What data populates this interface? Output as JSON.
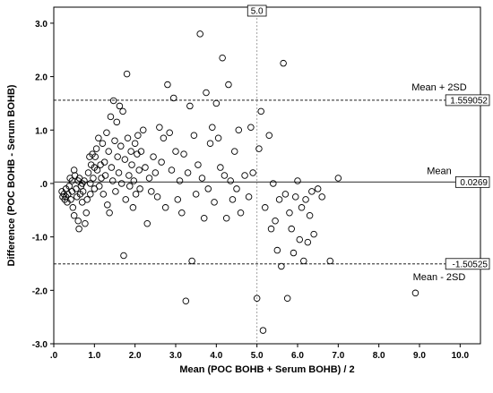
{
  "chart_data": {
    "type": "scatter",
    "xlabel": "Mean (POC BOHB + Serum BOHB) / 2",
    "ylabel": "Difference (POC BOHB - Serum BOHB)",
    "xlim": [
      0,
      10.5
    ],
    "ylim": [
      -3.0,
      3.3
    ],
    "x_ticks": [
      ".0",
      "1.0",
      "2.0",
      "3.0",
      "4.0",
      "5.0",
      "6.0",
      "7.0",
      "8.0",
      "9.0",
      "10.0"
    ],
    "x_tick_values": [
      0,
      1,
      2,
      3,
      4,
      5,
      6,
      7,
      8,
      9,
      10
    ],
    "y_ticks": [
      "3.0",
      "2.0",
      "1.0",
      ".0",
      "-1.0",
      "-2.0",
      "-3.0"
    ],
    "y_tick_values": [
      3,
      2,
      1,
      0,
      -1,
      -2,
      -3
    ],
    "grid": false,
    "reference_lines": [
      {
        "axis": "y",
        "value": 1.559052,
        "label": "Mean + 2SD",
        "box_label": "1.559052",
        "style": "dashed"
      },
      {
        "axis": "y",
        "value": 0.0269,
        "label": "Mean",
        "box_label": "0.0269",
        "style": "solid"
      },
      {
        "axis": "y",
        "value": -1.50525,
        "label": "Mean - 2SD",
        "box_label": "-1.50525",
        "style": "dashed"
      },
      {
        "axis": "x",
        "value": 5.0,
        "box_label": "5.0",
        "style": "dotted"
      }
    ],
    "points": [
      [
        0.2,
        -0.15
      ],
      [
        0.22,
        -0.25
      ],
      [
        0.25,
        -0.2
      ],
      [
        0.27,
        -0.3
      ],
      [
        0.3,
        -0.1
      ],
      [
        0.3,
        -0.25
      ],
      [
        0.33,
        -0.35
      ],
      [
        0.35,
        -0.2
      ],
      [
        0.38,
        -0.05
      ],
      [
        0.4,
        0.1
      ],
      [
        0.42,
        -0.3
      ],
      [
        0.45,
        0.05
      ],
      [
        0.45,
        -0.15
      ],
      [
        0.47,
        -0.45
      ],
      [
        0.5,
        -0.6
      ],
      [
        0.5,
        0.25
      ],
      [
        0.52,
        0.15
      ],
      [
        0.55,
        -0.1
      ],
      [
        0.57,
        -0.25
      ],
      [
        0.6,
        0.05
      ],
      [
        0.6,
        -0.7
      ],
      [
        0.62,
        -0.85
      ],
      [
        0.63,
        0.1
      ],
      [
        0.65,
        -0.2
      ],
      [
        0.67,
        -0.05
      ],
      [
        0.7,
        0.0
      ],
      [
        0.7,
        -0.35
      ],
      [
        0.72,
        -0.15
      ],
      [
        0.75,
        0.05
      ],
      [
        0.77,
        -0.75
      ],
      [
        0.8,
        -0.55
      ],
      [
        0.82,
        -0.3
      ],
      [
        0.85,
        0.2
      ],
      [
        0.88,
        0.5
      ],
      [
        0.9,
        0.0
      ],
      [
        0.9,
        -0.2
      ],
      [
        0.92,
        0.35
      ],
      [
        0.95,
        0.55
      ],
      [
        0.97,
        0.1
      ],
      [
        1.0,
        0.3
      ],
      [
        1.0,
        -0.1
      ],
      [
        1.02,
        0.5
      ],
      [
        1.05,
        0.65
      ],
      [
        1.07,
        0.25
      ],
      [
        1.1,
        0.85
      ],
      [
        1.12,
        -0.05
      ],
      [
        1.15,
        0.35
      ],
      [
        1.17,
        0.1
      ],
      [
        1.2,
        0.75
      ],
      [
        1.22,
        -0.2
      ],
      [
        1.25,
        0.4
      ],
      [
        1.27,
        0.15
      ],
      [
        1.3,
        0.95
      ],
      [
        1.32,
        -0.4
      ],
      [
        1.35,
        0.6
      ],
      [
        1.37,
        -0.55
      ],
      [
        1.4,
        1.25
      ],
      [
        1.42,
        0.3
      ],
      [
        1.45,
        0.05
      ],
      [
        1.47,
        1.55
      ],
      [
        1.5,
        0.8
      ],
      [
        1.52,
        -0.15
      ],
      [
        1.55,
        1.15
      ],
      [
        1.57,
        0.5
      ],
      [
        1.6,
        0.2
      ],
      [
        1.62,
        1.45
      ],
      [
        1.65,
        0.7
      ],
      [
        1.67,
        0.0
      ],
      [
        1.7,
        1.35
      ],
      [
        1.72,
        -1.35
      ],
      [
        1.75,
        0.45
      ],
      [
        1.77,
        -0.3
      ],
      [
        1.8,
        2.05
      ],
      [
        1.82,
        0.85
      ],
      [
        1.85,
        0.15
      ],
      [
        1.87,
        -0.05
      ],
      [
        1.9,
        0.6
      ],
      [
        1.92,
        0.35
      ],
      [
        1.95,
        -0.45
      ],
      [
        1.97,
        0.05
      ],
      [
        2.0,
        0.75
      ],
      [
        2.02,
        -0.2
      ],
      [
        2.05,
        0.55
      ],
      [
        2.07,
        0.9
      ],
      [
        2.1,
        0.25
      ],
      [
        2.12,
        -0.1
      ],
      [
        2.15,
        0.6
      ],
      [
        2.2,
        1.0
      ],
      [
        2.25,
        0.3
      ],
      [
        2.3,
        -0.75
      ],
      [
        2.35,
        0.1
      ],
      [
        2.4,
        -0.15
      ],
      [
        2.45,
        0.5
      ],
      [
        2.5,
        0.2
      ],
      [
        2.55,
        -0.25
      ],
      [
        2.6,
        1.05
      ],
      [
        2.65,
        0.4
      ],
      [
        2.7,
        0.85
      ],
      [
        2.75,
        -0.45
      ],
      [
        2.8,
        1.85
      ],
      [
        2.85,
        0.95
      ],
      [
        2.9,
        0.25
      ],
      [
        2.95,
        1.6
      ],
      [
        3.0,
        0.6
      ],
      [
        3.05,
        -0.3
      ],
      [
        3.1,
        0.05
      ],
      [
        3.15,
        -0.55
      ],
      [
        3.2,
        0.55
      ],
      [
        3.25,
        -2.2
      ],
      [
        3.3,
        0.2
      ],
      [
        3.35,
        1.45
      ],
      [
        3.4,
        -1.45
      ],
      [
        3.45,
        0.9
      ],
      [
        3.5,
        -0.2
      ],
      [
        3.55,
        0.35
      ],
      [
        3.6,
        2.8
      ],
      [
        3.65,
        0.1
      ],
      [
        3.7,
        -0.65
      ],
      [
        3.75,
        1.7
      ],
      [
        3.8,
        -0.1
      ],
      [
        3.85,
        0.75
      ],
      [
        3.9,
        1.05
      ],
      [
        3.95,
        -0.35
      ],
      [
        4.0,
        1.5
      ],
      [
        4.05,
        0.85
      ],
      [
        4.1,
        0.3
      ],
      [
        4.15,
        2.35
      ],
      [
        4.2,
        0.15
      ],
      [
        4.25,
        -0.65
      ],
      [
        4.3,
        1.85
      ],
      [
        4.35,
        0.05
      ],
      [
        4.4,
        -0.3
      ],
      [
        4.45,
        0.6
      ],
      [
        4.5,
        -0.1
      ],
      [
        4.55,
        1.0
      ],
      [
        4.6,
        -0.55
      ],
      [
        4.7,
        0.15
      ],
      [
        4.8,
        -0.25
      ],
      [
        4.85,
        1.05
      ],
      [
        4.9,
        0.2
      ],
      [
        5.0,
        -2.15
      ],
      [
        5.05,
        0.65
      ],
      [
        5.1,
        1.35
      ],
      [
        5.15,
        -2.75
      ],
      [
        5.2,
        -0.45
      ],
      [
        5.3,
        0.9
      ],
      [
        5.35,
        -0.85
      ],
      [
        5.4,
        0.0
      ],
      [
        5.45,
        -0.7
      ],
      [
        5.5,
        -1.25
      ],
      [
        5.55,
        -0.3
      ],
      [
        5.6,
        -1.55
      ],
      [
        5.65,
        2.25
      ],
      [
        5.7,
        -0.2
      ],
      [
        5.75,
        -2.15
      ],
      [
        5.8,
        -0.55
      ],
      [
        5.85,
        -0.85
      ],
      [
        5.9,
        -1.3
      ],
      [
        5.95,
        -0.25
      ],
      [
        6.0,
        0.05
      ],
      [
        6.05,
        -1.05
      ],
      [
        6.1,
        -0.45
      ],
      [
        6.15,
        -1.45
      ],
      [
        6.2,
        -0.3
      ],
      [
        6.25,
        -1.1
      ],
      [
        6.3,
        -0.6
      ],
      [
        6.35,
        -0.15
      ],
      [
        6.4,
        -0.95
      ],
      [
        6.5,
        -0.1
      ],
      [
        6.6,
        -0.25
      ],
      [
        6.8,
        -1.45
      ],
      [
        7.0,
        0.1
      ],
      [
        8.9,
        -2.05
      ]
    ]
  }
}
